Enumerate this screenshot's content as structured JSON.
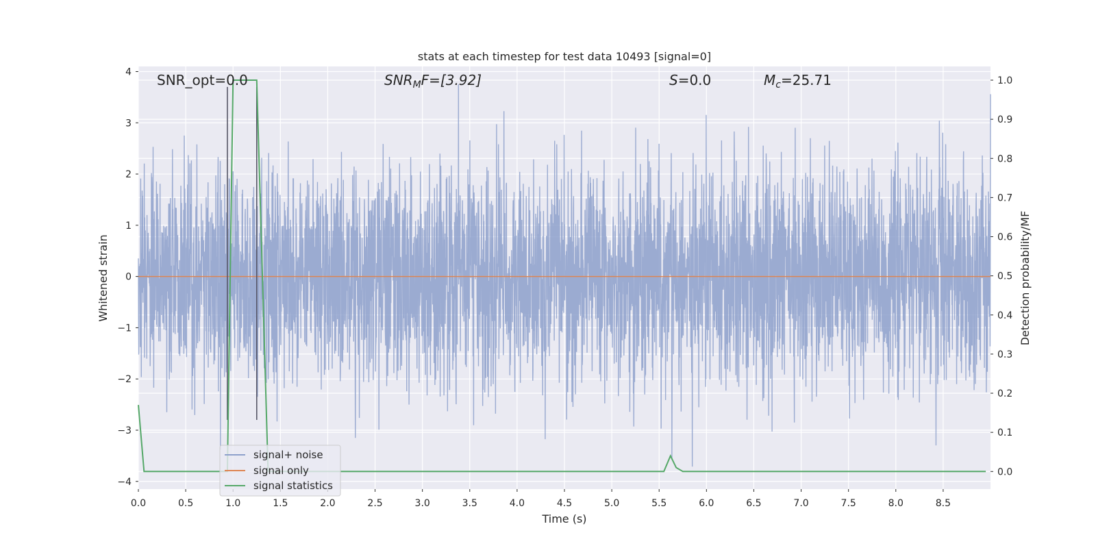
{
  "chart_data": {
    "type": "line",
    "title": "stats at each timestep for test data 10493 [signal=0]",
    "xlabel": "Time (s)",
    "ylabel_left": "Whitened strain",
    "ylabel_right": "Detection probability/MF",
    "xlim": [
      0,
      9.0
    ],
    "ylim_left": [
      -4.15,
      4.1
    ],
    "ylim_right": [
      -0.045,
      1.035
    ],
    "x_ticks": [
      "0.0",
      "0.5",
      "1.0",
      "1.5",
      "2.0",
      "2.5",
      "3.0",
      "3.5",
      "4.0",
      "4.5",
      "5.0",
      "5.5",
      "6.0",
      "6.5",
      "7.0",
      "7.5",
      "8.0",
      "8.5"
    ],
    "y_ticks_left": [
      "−4",
      "−3",
      "−2",
      "−1",
      "0",
      "1",
      "2",
      "3",
      "4"
    ],
    "y_ticks_right": [
      "0.0",
      "0.1",
      "0.2",
      "0.3",
      "0.4",
      "0.5",
      "0.6",
      "0.7",
      "0.8",
      "0.9",
      "1.0"
    ],
    "grid": true,
    "legend_position": "lower-left",
    "annotations": {
      "snr_opt": "SNR_opt=0.0",
      "snr_mf_sym": "SNR",
      "snr_mf_sub": "M",
      "snr_mf_rest": "F=[3.92]",
      "s_sym": "S",
      "s_rest": "=0.0",
      "mc_sym": "M",
      "mc_sub": "c",
      "mc_rest": "=25.71"
    },
    "vertical_markers_x": [
      0.94,
      1.25
    ],
    "series": [
      {
        "name": "signal+ noise",
        "axis": "left",
        "color": "#8da0cb",
        "kind": "noise",
        "sample_rate_hz": 450,
        "amplitude_std": 1.0
      },
      {
        "name": "signal only",
        "axis": "left",
        "color": "#dd8452",
        "x": [
          0,
          9.0
        ],
        "y": [
          0,
          0
        ]
      },
      {
        "name": "signal statistics",
        "axis": "right",
        "color": "#55a868",
        "x": [
          0,
          0.06,
          0.13,
          0.9,
          0.94,
          1.0,
          1.25,
          1.37,
          1.42,
          5.55,
          5.62,
          5.68,
          5.75,
          7.2,
          8.95
        ],
        "y": [
          0.17,
          0.0,
          0.0,
          0.0,
          0.0,
          1.0,
          1.0,
          0.0,
          0.0,
          0.0,
          0.04,
          0.01,
          0.0,
          0.0,
          0.0
        ]
      }
    ]
  }
}
